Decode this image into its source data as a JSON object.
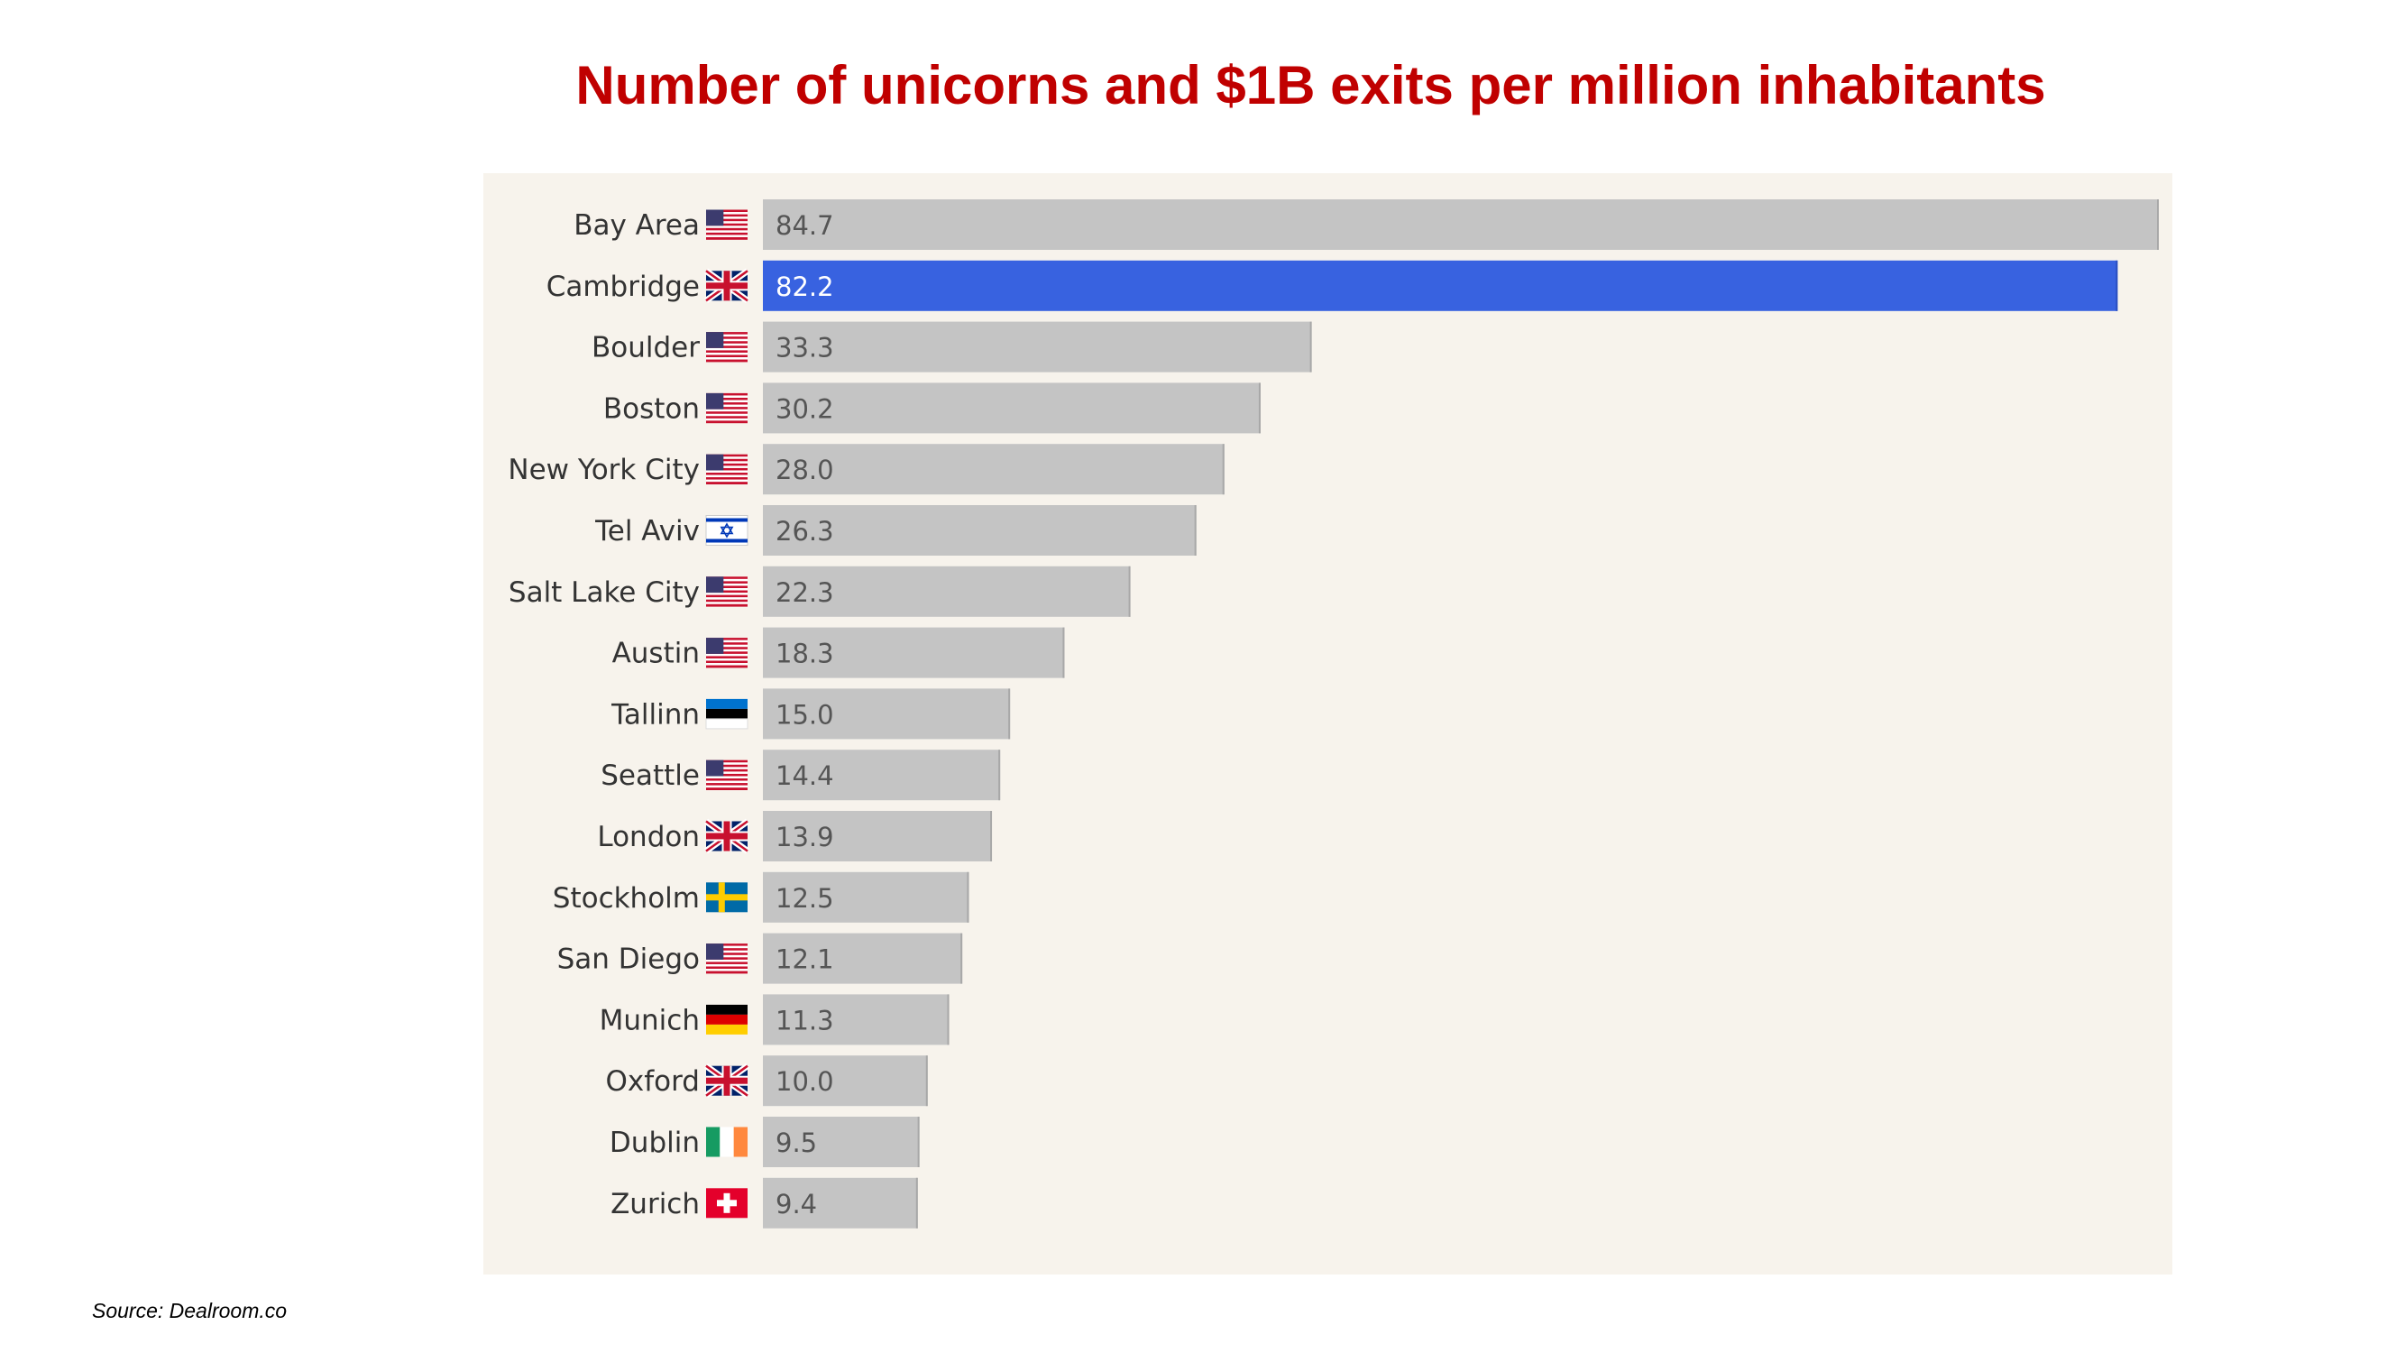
{
  "title": "Number of unicorns and $1B exits per million inhabitants",
  "source": "Source: Dealroom.co",
  "colors": {
    "title": "#c00000",
    "bar": "#c4c4c4",
    "bar_highlight": "#3862e0",
    "panel_background": "#f7f3ec"
  },
  "chart_data": {
    "type": "bar",
    "orientation": "horizontal",
    "title": "Number of unicorns and $1B exits per million inhabitants",
    "xlabel": "",
    "ylabel": "",
    "xlim": [
      0,
      84.7
    ],
    "grid": false,
    "legend": "none",
    "highlight": "Cambridge",
    "categories": [
      "Bay Area",
      "Cambridge",
      "Boulder",
      "Boston",
      "New York City",
      "Tel Aviv",
      "Salt Lake City",
      "Austin",
      "Tallinn",
      "Seattle",
      "London",
      "Stockholm",
      "San Diego",
      "Munich",
      "Oxford",
      "Dublin",
      "Zurich"
    ],
    "values": [
      84.7,
      82.2,
      33.3,
      30.2,
      28.0,
      26.3,
      22.3,
      18.3,
      15.0,
      14.4,
      13.9,
      12.5,
      12.1,
      11.3,
      10.0,
      9.5,
      9.4
    ],
    "value_labels": [
      "84.7",
      "82.2",
      "33.3",
      "30.2",
      "28.0",
      "26.3",
      "22.3",
      "18.3",
      "15.0",
      "14.4",
      "13.9",
      "12.5",
      "12.1",
      "11.3",
      "10.0",
      "9.5",
      "9.4"
    ],
    "flags": [
      "us-flag-icon",
      "uk-flag-icon",
      "us-flag-icon",
      "us-flag-icon",
      "us-flag-icon",
      "israel-flag-icon",
      "us-flag-icon",
      "us-flag-icon",
      "estonia-flag-icon",
      "us-flag-icon",
      "uk-flag-icon",
      "sweden-flag-icon",
      "us-flag-icon",
      "germany-flag-icon",
      "uk-flag-icon",
      "ireland-flag-icon",
      "switzerland-flag-icon"
    ]
  }
}
